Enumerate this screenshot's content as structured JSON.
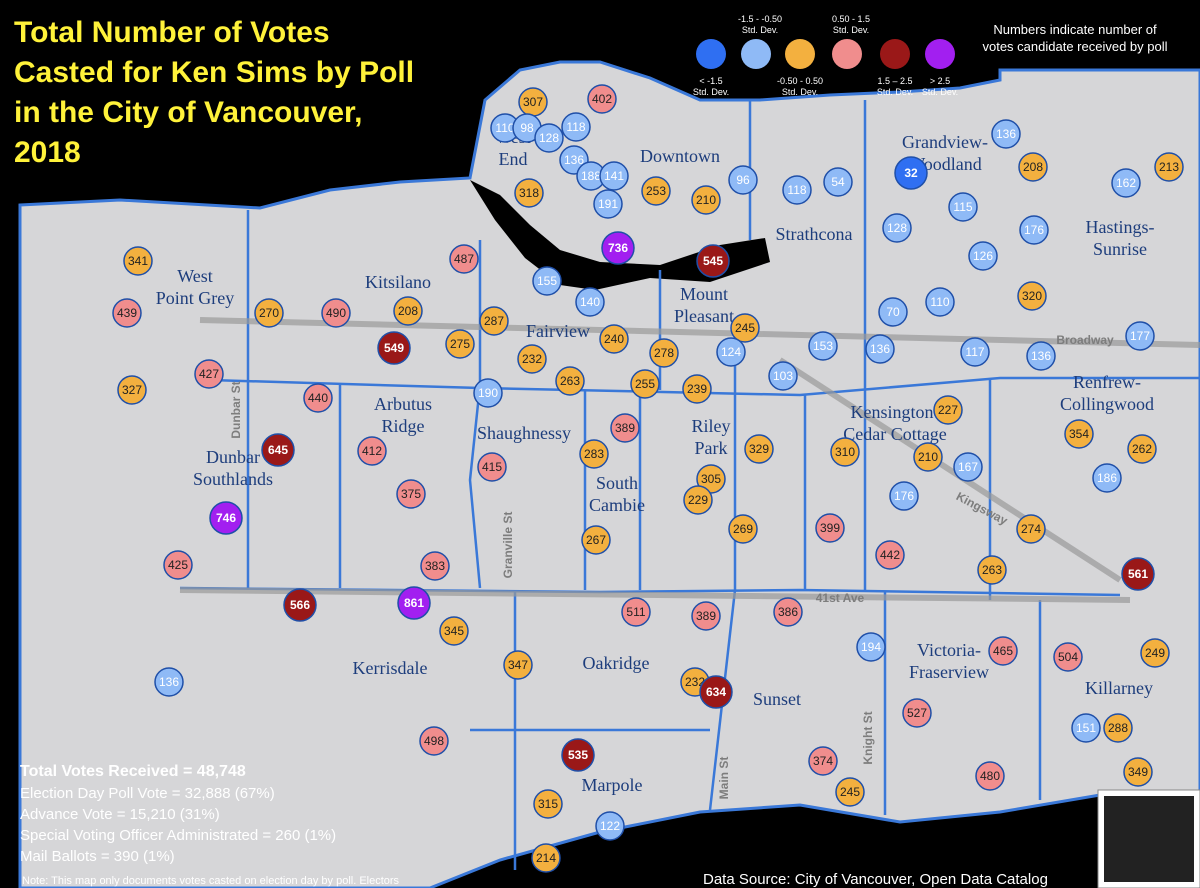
{
  "title": [
    "Total Number of Votes",
    "Casted for Ken Sims by Poll",
    "in the City of Vancouver,",
    "2018"
  ],
  "legend": {
    "items": [
      {
        "label": "< -1.5",
        "sublabel": "Std. Dev.",
        "color": "#2f6ff2"
      },
      {
        "label": "-1.5 - -0.50",
        "sublabel": "Std. Dev.",
        "color": "#8fbaf6"
      },
      {
        "label": "-0.50 - 0.50",
        "sublabel": "Std. Dev.",
        "color": "#f3b03f"
      },
      {
        "label": "0.50 - 1.5",
        "sublabel": "Std. Dev.",
        "color": "#f08d8d"
      },
      {
        "label": "1.5 – 2.5",
        "sublabel": "Std. Dev.",
        "color": "#9a1818"
      },
      {
        "label": "> 2.5",
        "sublabel": "Std. Dev.",
        "color": "#a21ff0"
      }
    ],
    "note": [
      "Numbers indicate number of",
      "votes candidate received by poll"
    ]
  },
  "polls": [
    {
      "value": 307,
      "category": 2
    },
    {
      "value": 402,
      "category": 3
    },
    {
      "value": 110,
      "category": 1
    },
    {
      "value": 98,
      "category": 1
    },
    {
      "value": 128,
      "category": 1
    },
    {
      "value": 118,
      "category": 1
    },
    {
      "value": 136,
      "category": 1
    },
    {
      "value": 188,
      "category": 1
    },
    {
      "value": 141,
      "category": 1
    },
    {
      "value": 191,
      "category": 1
    },
    {
      "value": 318,
      "category": 2
    },
    {
      "value": 253,
      "category": 2
    },
    {
      "value": 210,
      "category": 2
    },
    {
      "value": 96,
      "category": 1
    },
    {
      "value": 118,
      "category": 1
    },
    {
      "value": 54,
      "category": 1
    },
    {
      "value": 32,
      "category": 0
    },
    {
      "value": 136,
      "category": 1
    },
    {
      "value": 208,
      "category": 2
    },
    {
      "value": 162,
      "category": 1
    },
    {
      "value": 213,
      "category": 2
    },
    {
      "value": 115,
      "category": 1
    },
    {
      "value": 128,
      "category": 1
    },
    {
      "value": 176,
      "category": 1
    },
    {
      "value": 126,
      "category": 1
    },
    {
      "value": 736,
      "category": 5
    },
    {
      "value": 545,
      "category": 4
    },
    {
      "value": 487,
      "category": 3
    },
    {
      "value": 341,
      "category": 2
    },
    {
      "value": 155,
      "category": 1
    },
    {
      "value": 140,
      "category": 1
    },
    {
      "value": 320,
      "category": 2
    },
    {
      "value": 70,
      "category": 1
    },
    {
      "value": 110,
      "category": 1
    },
    {
      "value": 439,
      "category": 3
    },
    {
      "value": 270,
      "category": 2
    },
    {
      "value": 490,
      "category": 3
    },
    {
      "value": 208,
      "category": 2
    },
    {
      "value": 287,
      "category": 2
    },
    {
      "value": 245,
      "category": 2
    },
    {
      "value": 549,
      "category": 4
    },
    {
      "value": 275,
      "category": 2
    },
    {
      "value": 240,
      "category": 2
    },
    {
      "value": 278,
      "category": 2
    },
    {
      "value": 124,
      "category": 1
    },
    {
      "value": 153,
      "category": 1
    },
    {
      "value": 136,
      "category": 1
    },
    {
      "value": 117,
      "category": 1
    },
    {
      "value": 136,
      "category": 1
    },
    {
      "value": 177,
      "category": 1
    },
    {
      "value": 232,
      "category": 2
    },
    {
      "value": 263,
      "category": 2
    },
    {
      "value": 255,
      "category": 2
    },
    {
      "value": 239,
      "category": 2
    },
    {
      "value": 103,
      "category": 1
    },
    {
      "value": 427,
      "category": 3
    },
    {
      "value": 327,
      "category": 2
    },
    {
      "value": 440,
      "category": 3
    },
    {
      "value": 190,
      "category": 1
    },
    {
      "value": 227,
      "category": 2
    },
    {
      "value": 389,
      "category": 3
    },
    {
      "value": 283,
      "category": 2
    },
    {
      "value": 329,
      "category": 2
    },
    {
      "value": 354,
      "category": 2
    },
    {
      "value": 412,
      "category": 3
    },
    {
      "value": 645,
      "category": 4
    },
    {
      "value": 415,
      "category": 3
    },
    {
      "value": 305,
      "category": 2
    },
    {
      "value": 310,
      "category": 2
    },
    {
      "value": 210,
      "category": 2
    },
    {
      "value": 167,
      "category": 1
    },
    {
      "value": 262,
      "category": 2
    },
    {
      "value": 186,
      "category": 1
    },
    {
      "value": 229,
      "category": 2
    },
    {
      "value": 176,
      "category": 1
    },
    {
      "value": 375,
      "category": 3
    },
    {
      "value": 746,
      "category": 5
    },
    {
      "value": 399,
      "category": 3
    },
    {
      "value": 274,
      "category": 2
    },
    {
      "value": 269,
      "category": 2
    },
    {
      "value": 267,
      "category": 2
    },
    {
      "value": 442,
      "category": 3
    },
    {
      "value": 425,
      "category": 3
    },
    {
      "value": 383,
      "category": 3
    },
    {
      "value": 263,
      "category": 2
    },
    {
      "value": 561,
      "category": 4
    },
    {
      "value": 566,
      "category": 4
    },
    {
      "value": 861,
      "category": 5
    },
    {
      "value": 511,
      "category": 3
    },
    {
      "value": 389,
      "category": 3
    },
    {
      "value": 386,
      "category": 3
    },
    {
      "value": 345,
      "category": 2
    },
    {
      "value": 194,
      "category": 1
    },
    {
      "value": 465,
      "category": 3
    },
    {
      "value": 504,
      "category": 3
    },
    {
      "value": 249,
      "category": 2
    },
    {
      "value": 347,
      "category": 2
    },
    {
      "value": 232,
      "category": 2
    },
    {
      "value": 634,
      "category": 4
    },
    {
      "value": 136,
      "category": 1
    },
    {
      "value": 527,
      "category": 3
    },
    {
      "value": 151,
      "category": 1
    },
    {
      "value": 288,
      "category": 2
    },
    {
      "value": 498,
      "category": 3
    },
    {
      "value": 535,
      "category": 4
    },
    {
      "value": 374,
      "category": 3
    },
    {
      "value": 480,
      "category": 3
    },
    {
      "value": 349,
      "category": 2
    },
    {
      "value": 245,
      "category": 2
    },
    {
      "value": 315,
      "category": 2
    },
    {
      "value": 122,
      "category": 1
    },
    {
      "value": 214,
      "category": 2
    }
  ],
  "neighbourhoods": [
    [
      "West",
      "End"
    ],
    [
      "Downtown"
    ],
    [
      "Strathcona"
    ],
    [
      "Grandview-",
      "Woodland"
    ],
    [
      "Hastings-",
      "Sunrise"
    ],
    [
      "West",
      "Point Grey"
    ],
    [
      "Kitsilano"
    ],
    [
      "Mount",
      "Pleasant"
    ],
    [
      "Fairview"
    ],
    [
      "Arbutus",
      "Ridge"
    ],
    [
      "Shaughnessy"
    ],
    [
      "Riley",
      "Park"
    ],
    [
      "Kensington-",
      "Cedar Cottage"
    ],
    [
      "Renfrew-",
      "Collingwood"
    ],
    [
      "Dunbar",
      "Southlands"
    ],
    [
      "South",
      "Cambie"
    ],
    [
      "Kerrisdale"
    ],
    [
      "Oakridge"
    ],
    [
      "Sunset"
    ],
    [
      "Victoria-",
      "Fraserview"
    ],
    [
      "Killarney"
    ],
    [
      "Marpole"
    ]
  ],
  "streets": [
    "Dunbar St",
    "Granville St",
    "Main St",
    "Knight St",
    "Broadway",
    "Kingsway",
    "41st Ave"
  ],
  "stats": {
    "headline": "Total Votes Received = 48,748",
    "lines": [
      "Election Day Poll Vote = 32,888 (67%)",
      "Advance Vote = 15,210 (31%)",
      "Special Voting Officer Administrated = 260 (1%)",
      "Mail Ballots = 390 (1%)"
    ],
    "note": "Note: This map only documents votes casted on election day by poll. Electors"
  },
  "source": "Data Source: City of Vancouver, Open Data Catalog"
}
